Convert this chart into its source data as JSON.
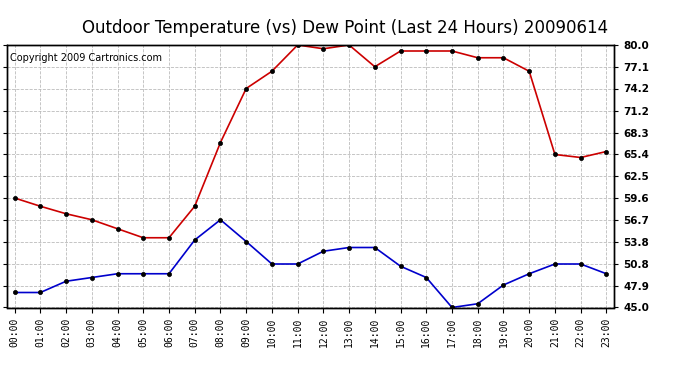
{
  "title": "Outdoor Temperature (vs) Dew Point (Last 24 Hours) 20090614",
  "copyright": "Copyright 2009 Cartronics.com",
  "hours": [
    "00:00",
    "01:00",
    "02:00",
    "03:00",
    "04:00",
    "05:00",
    "06:00",
    "07:00",
    "08:00",
    "09:00",
    "10:00",
    "11:00",
    "12:00",
    "13:00",
    "14:00",
    "15:00",
    "16:00",
    "17:00",
    "18:00",
    "19:00",
    "20:00",
    "21:00",
    "22:00",
    "23:00"
  ],
  "temp": [
    59.6,
    58.5,
    57.5,
    56.7,
    55.5,
    54.3,
    54.3,
    58.5,
    67.0,
    74.2,
    76.5,
    80.0,
    79.5,
    80.0,
    77.1,
    79.2,
    79.2,
    79.2,
    78.3,
    78.3,
    76.5,
    65.4,
    65.0,
    65.8
  ],
  "dew": [
    47.0,
    47.0,
    48.5,
    49.0,
    49.5,
    49.5,
    49.5,
    54.0,
    56.7,
    53.8,
    50.8,
    50.8,
    52.5,
    53.0,
    53.0,
    50.5,
    49.0,
    45.0,
    45.5,
    48.0,
    49.5,
    50.8,
    50.8,
    49.5
  ],
  "ylim": [
    45.0,
    80.0
  ],
  "yticks": [
    45.0,
    47.9,
    50.8,
    53.8,
    56.7,
    59.6,
    62.5,
    65.4,
    68.3,
    71.2,
    74.2,
    77.1,
    80.0
  ],
  "temp_color": "#cc0000",
  "dew_color": "#0000cc",
  "grid_color": "#bbbbbb",
  "bg_color": "#ffffff",
  "title_fontsize": 12,
  "copyright_fontsize": 7,
  "tick_fontsize": 7.5,
  "xlabel_fontsize": 7
}
